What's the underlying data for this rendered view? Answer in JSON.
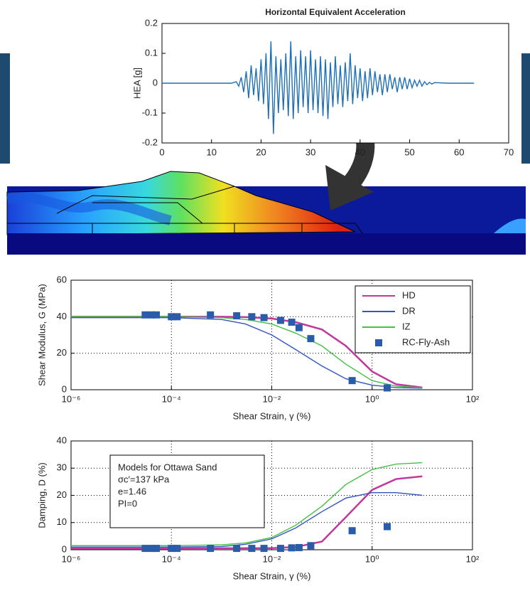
{
  "chart_data": [
    {
      "type": "line",
      "title": "Horizontal Equivalent Acceleration",
      "ylabel": "HEA [g]",
      "xlim": [
        0,
        70
      ],
      "xticks": [
        0,
        10,
        20,
        30,
        40,
        50,
        60,
        70
      ],
      "ylim": [
        -0.2,
        0.2
      ],
      "yticks": [
        -0.2,
        -0.1,
        0,
        0.1,
        0.2
      ],
      "grid": false,
      "series": [
        {
          "color": "#1f6fb4",
          "x": [
            0,
            10,
            14,
            15,
            15.5,
            16,
            16.5,
            17,
            17.5,
            18,
            18.5,
            19,
            19.5,
            20,
            20.5,
            21,
            21.5,
            22,
            22.5,
            23,
            23.5,
            24,
            24.5,
            25,
            25.5,
            26,
            26.5,
            27,
            27.5,
            28,
            28.5,
            29,
            29.5,
            30,
            30.5,
            31,
            31.5,
            32,
            32.5,
            33,
            33.5,
            34,
            34.5,
            35,
            35.5,
            36,
            36.5,
            37,
            37.5,
            38,
            38.5,
            39,
            39.5,
            40,
            40.5,
            41,
            41.5,
            42,
            42.5,
            43,
            43.5,
            44,
            44.5,
            45,
            45.5,
            46,
            46.5,
            47,
            47.5,
            48,
            48.5,
            49,
            49.5,
            50,
            50.5,
            51,
            51.5,
            52,
            52.5,
            53,
            53.5,
            54,
            54.5,
            55,
            58,
            63
          ],
          "values": [
            0,
            0,
            0,
            0.005,
            -0.01,
            0.02,
            -0.03,
            0.04,
            -0.05,
            0.06,
            -0.04,
            0.05,
            -0.06,
            0.08,
            -0.07,
            0.1,
            -0.12,
            0.14,
            -0.17,
            0.09,
            -0.1,
            0.08,
            -0.09,
            0.1,
            -0.11,
            0.14,
            -0.12,
            0.09,
            -0.1,
            0.11,
            -0.08,
            0.09,
            -0.1,
            0.11,
            -0.09,
            0.08,
            -0.1,
            0.09,
            -0.11,
            0.08,
            -0.12,
            0.07,
            -0.08,
            0.09,
            -0.07,
            0.06,
            -0.08,
            0.07,
            -0.06,
            0.1,
            -0.07,
            0.06,
            -0.05,
            0.05,
            -0.06,
            0.04,
            -0.05,
            0.05,
            -0.04,
            0.04,
            -0.03,
            0.03,
            -0.04,
            0.03,
            -0.03,
            0.03,
            -0.02,
            0.02,
            -0.03,
            0.02,
            -0.02,
            0.02,
            -0.02,
            0.015,
            -0.015,
            0.01,
            -0.01,
            0.01,
            -0.01,
            0.005,
            -0.005,
            0.003,
            -0.003,
            0.002,
            0,
            0
          ]
        }
      ]
    },
    {
      "type": "line",
      "xscale": "log",
      "xlabel": "Shear Strain, γ (%)",
      "ylabel": "Shear Modulus, G (MPa)",
      "xlim": [
        1e-06,
        100
      ],
      "xticks": [
        {
          "value": 1e-06,
          "label": "10⁻⁶"
        },
        {
          "value": 0.0001,
          "label": "10⁻⁴"
        },
        {
          "value": 0.01,
          "label": "10⁻²"
        },
        {
          "value": 1,
          "label": "10⁰"
        },
        {
          "value": 100,
          "label": "10²"
        }
      ],
      "ylim": [
        0,
        60
      ],
      "yticks": [
        0,
        20,
        40,
        60
      ],
      "grid": true,
      "legend": "upper right",
      "series": [
        {
          "name": "HD",
          "type": "line",
          "color": "#c0389c",
          "x": [
            1e-06,
            1e-05,
            0.0001,
            0.001,
            0.003,
            0.01,
            0.03,
            0.1,
            0.3,
            1,
            3,
            10
          ],
          "values": [
            40,
            40,
            40,
            40,
            39.8,
            39,
            37,
            33,
            24,
            10,
            3,
            1.2
          ]
        },
        {
          "name": "DR",
          "type": "line",
          "color": "#3355c0",
          "x": [
            1e-06,
            1e-05,
            0.0001,
            0.001,
            0.003,
            0.01,
            0.03,
            0.1,
            0.3,
            1,
            3,
            10
          ],
          "values": [
            39.5,
            39.5,
            39.5,
            38.5,
            36,
            30,
            22,
            13,
            6,
            2.5,
            1.2,
            0.8
          ]
        },
        {
          "name": "IZ",
          "type": "line",
          "color": "#44c044",
          "x": [
            1e-06,
            1e-05,
            0.0001,
            0.001,
            0.003,
            0.01,
            0.03,
            0.1,
            0.3,
            1,
            3,
            10
          ],
          "values": [
            40,
            40,
            40,
            39.5,
            38.5,
            36,
            31,
            24,
            14,
            5,
            2,
            1
          ]
        },
        {
          "name": "RC-Fly-Ash",
          "type": "scatter",
          "color": "#2a5caa",
          "x": [
            3e-05,
            4e-05,
            5e-05,
            0.0001,
            0.00013,
            0.0006,
            0.002,
            0.004,
            0.007,
            0.015,
            0.025,
            0.035,
            0.06,
            0.4,
            2
          ],
          "values": [
            41,
            41,
            41,
            40,
            40,
            41,
            40.5,
            40,
            39.5,
            38,
            37,
            34,
            28,
            5,
            1
          ]
        }
      ]
    },
    {
      "type": "line",
      "xscale": "log",
      "xlabel": "Shear Strain, γ (%)",
      "ylabel": "Damping, D (%)",
      "xlim": [
        1e-06,
        100
      ],
      "xticks": [
        {
          "value": 1e-06,
          "label": "10⁻⁶"
        },
        {
          "value": 0.0001,
          "label": "10⁻⁴"
        },
        {
          "value": 0.01,
          "label": "10⁻²"
        },
        {
          "value": 1,
          "label": "10⁰"
        },
        {
          "value": 100,
          "label": "10²"
        }
      ],
      "ylim": [
        0,
        40
      ],
      "yticks": [
        0,
        10,
        20,
        30,
        40
      ],
      "grid": true,
      "annotation": [
        "Models for Ottawa Sand",
        "σc′=137 kPa",
        "e=1.46",
        "PI=0"
      ],
      "series": [
        {
          "type": "line",
          "color": "#c0389c",
          "x": [
            1e-06,
            0.0001,
            0.01,
            0.03,
            0.1,
            0.3,
            1,
            3,
            10
          ],
          "values": [
            0.5,
            0.5,
            0.6,
            1,
            3,
            12,
            22,
            26,
            27
          ]
        },
        {
          "type": "line",
          "color": "#3355c0",
          "x": [
            1e-06,
            0.0001,
            0.001,
            0.003,
            0.01,
            0.03,
            0.1,
            0.3,
            1,
            3,
            10
          ],
          "values": [
            1,
            1,
            1.2,
            2,
            4,
            8,
            14,
            19,
            21,
            21,
            20
          ]
        },
        {
          "type": "line",
          "color": "#44c044",
          "x": [
            1e-06,
            0.0001,
            0.001,
            0.003,
            0.01,
            0.03,
            0.1,
            0.3,
            1,
            3,
            10
          ],
          "values": [
            1.5,
            1.5,
            1.8,
            2.5,
            4.5,
            9,
            16,
            24,
            29.5,
            31.5,
            32
          ]
        },
        {
          "type": "scatter",
          "color": "#2a5caa",
          "x": [
            3e-05,
            4e-05,
            5e-05,
            0.0001,
            0.00013,
            0.0006,
            0.002,
            0.004,
            0.007,
            0.015,
            0.025,
            0.035,
            0.06,
            0.4,
            2
          ],
          "values": [
            0.5,
            0.5,
            0.5,
            0.5,
            0.5,
            0.5,
            0.5,
            0.5,
            0.5,
            0.5,
            0.7,
            0.8,
            1.5,
            7,
            8.5
          ]
        }
      ]
    }
  ]
}
